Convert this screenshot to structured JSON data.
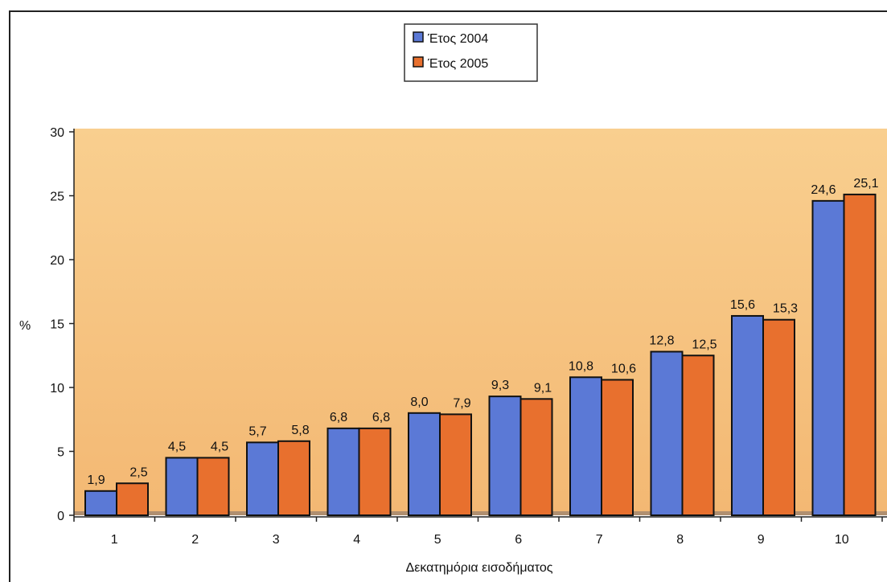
{
  "chart_data": {
    "type": "bar",
    "title": "",
    "xlabel": "Δεκατημόρια εισοδήματος",
    "ylabel": "%",
    "ylim": [
      0,
      30
    ],
    "yticks": [
      "0",
      "5",
      "10",
      "15",
      "20",
      "25",
      "30"
    ],
    "categories": [
      "1",
      "2",
      "3",
      "4",
      "5",
      "6",
      "7",
      "8",
      "9",
      "10"
    ],
    "series": [
      {
        "name": "Έτος 2004",
        "color": "#5b79d6",
        "values": [
          1.9,
          4.5,
          5.7,
          6.8,
          8.0,
          9.3,
          10.8,
          12.8,
          15.6,
          24.6
        ],
        "labels": [
          "1,9",
          "4,5",
          "5,7",
          "6,8",
          "8,0",
          "9,3",
          "10,8",
          "12,8",
          "15,6",
          "24,6"
        ]
      },
      {
        "name": "Έτος 2005",
        "color": "#e8702e",
        "values": [
          2.5,
          4.5,
          5.8,
          6.8,
          7.9,
          9.1,
          10.6,
          12.5,
          15.3,
          25.1
        ],
        "labels": [
          "2,5",
          "4,5",
          "5,8",
          "6,8",
          "7,9",
          "9,1",
          "10,6",
          "12,5",
          "15,3",
          "25,1"
        ]
      }
    ],
    "legend_position": "top-center",
    "plot_background": "#f7c27e",
    "grid": false
  }
}
